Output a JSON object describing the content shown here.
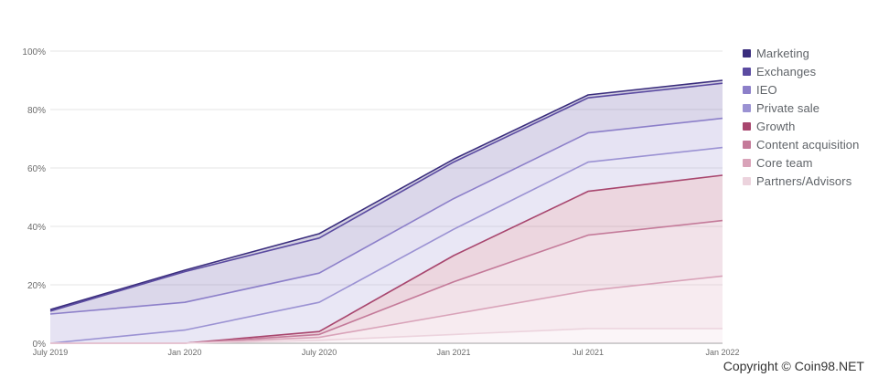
{
  "chart_data": {
    "type": "area",
    "stacked": true,
    "x": [
      "July 2019",
      "Jan 2020",
      "July 2020",
      "Jan 2021",
      "Jul 2021",
      "Jan 2022"
    ],
    "ylim": [
      0,
      100
    ],
    "yticks": [
      "0%",
      "20%",
      "40%",
      "60%",
      "80%",
      "100%"
    ],
    "legend_position": "right",
    "series": [
      {
        "name": "Marketing",
        "cumulative_pct": [
          11.5,
          25,
          37.5,
          63,
          85,
          90
        ],
        "color": "#3a2d7d"
      },
      {
        "name": "Exchanges",
        "cumulative_pct": [
          11,
          24.5,
          36,
          62,
          84,
          89
        ],
        "color": "#5b4ba1"
      },
      {
        "name": "IEO",
        "cumulative_pct": [
          10,
          14,
          24,
          49.5,
          72,
          77
        ],
        "color": "#8c7fc9"
      },
      {
        "name": "Private sale",
        "cumulative_pct": [
          0,
          4.5,
          14,
          39,
          62,
          67
        ],
        "color": "#9b92d3"
      },
      {
        "name": "Growth",
        "cumulative_pct": [
          0,
          0,
          4,
          30,
          52,
          57.5
        ],
        "color": "#a8466e"
      },
      {
        "name": "Content acquisition",
        "cumulative_pct": [
          0,
          0,
          3,
          21,
          37,
          42
        ],
        "color": "#c47a99"
      },
      {
        "name": "Core team",
        "cumulative_pct": [
          0,
          0,
          2,
          10,
          18,
          23
        ],
        "color": "#d9a3b9"
      },
      {
        "name": "Partners/Advisors",
        "cumulative_pct": [
          0,
          0,
          1,
          3,
          5,
          5
        ],
        "color": "#ecd3dd"
      }
    ]
  },
  "copyright": "Copyright © Coin98.NET"
}
